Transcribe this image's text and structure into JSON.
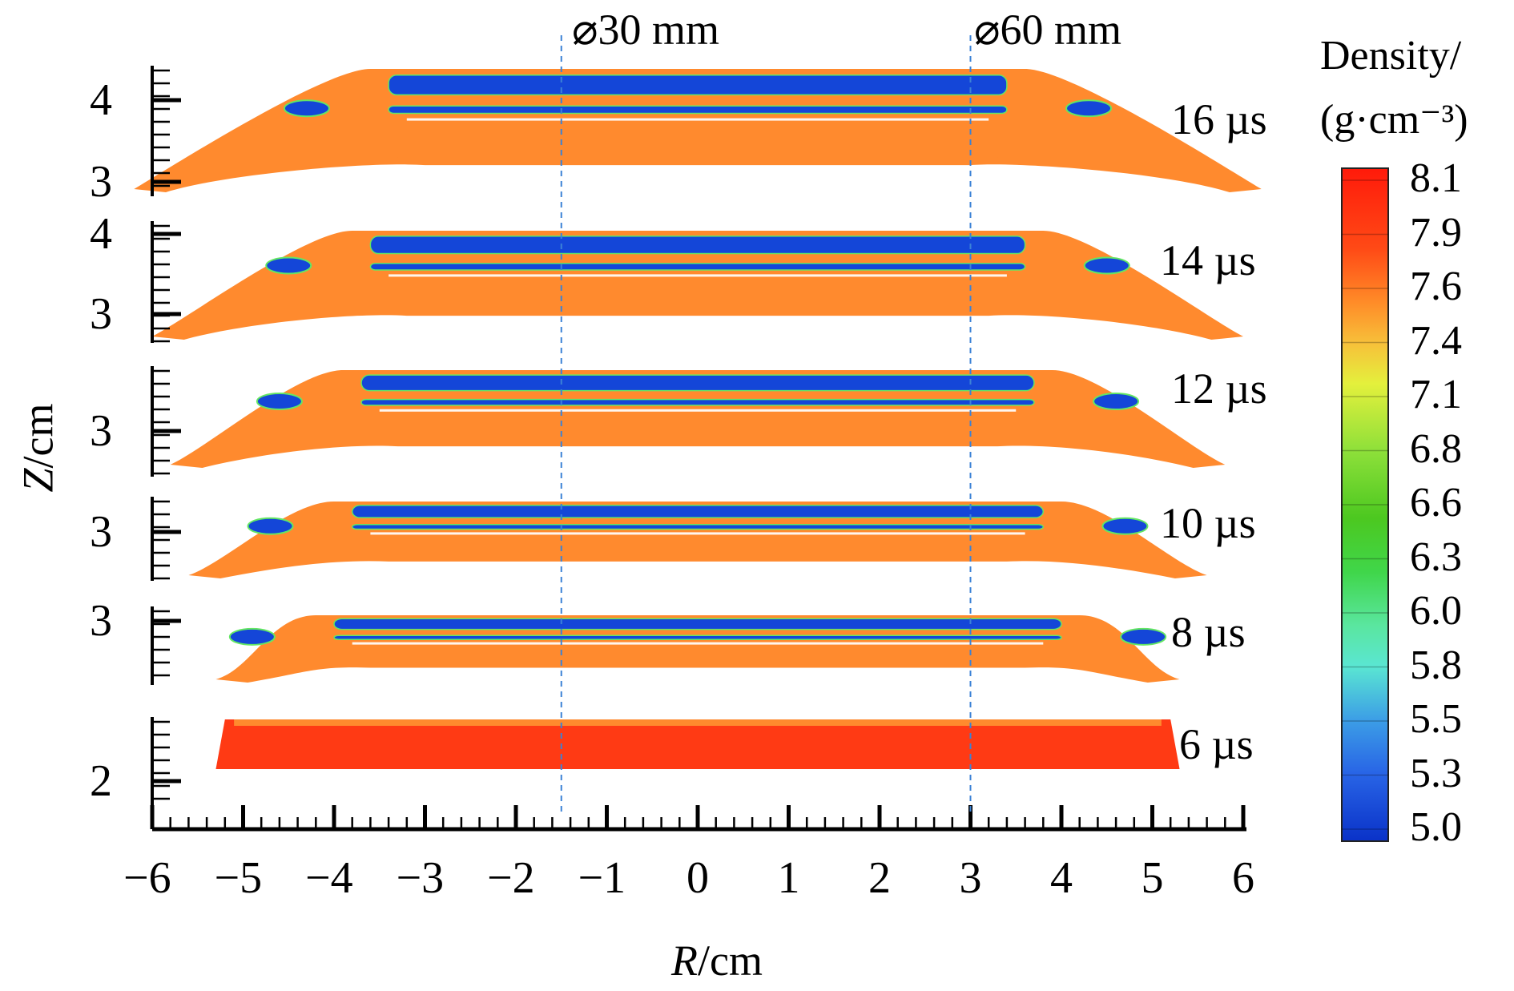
{
  "figure": {
    "diameter_labels": [
      "⌀30 mm",
      "⌀60 mm"
    ],
    "diameter_line_r": [
      -1.5,
      3
    ],
    "x_axis": {
      "label_italic": "R",
      "label_unit": "/cm",
      "range": [
        -6,
        6
      ],
      "ticks": [
        "−6",
        "−5",
        "−4",
        "−3",
        "−2",
        "−1",
        "0",
        "1",
        "2",
        "3",
        "4",
        "5",
        "6"
      ]
    },
    "y_axis": {
      "label_italic": "Z",
      "label_unit": "/cm"
    },
    "panels": [
      {
        "time": "16 µs",
        "z_ticks": [
          "4",
          "3"
        ]
      },
      {
        "time": "14 µs",
        "z_ticks": [
          "4",
          "3"
        ]
      },
      {
        "time": "12 µs",
        "z_ticks": [
          "3"
        ]
      },
      {
        "time": "10 µs",
        "z_ticks": [
          "3"
        ]
      },
      {
        "time": "8 µs",
        "z_ticks": [
          "3"
        ]
      },
      {
        "time": "6 µs",
        "z_ticks": [
          "2"
        ]
      }
    ],
    "colorbar": {
      "title_line1": "Density/",
      "title_line2": "(g·cm⁻³)",
      "levels": [
        "8.1",
        "7.9",
        "7.6",
        "7.4",
        "7.1",
        "6.8",
        "6.6",
        "6.3",
        "6.0",
        "5.8",
        "5.5",
        "5.3",
        "5.0"
      ],
      "colors": [
        "#ff1a0a",
        "#ff5a1a",
        "#ff8c28",
        "#f4c83c",
        "#e4f03c",
        "#9ee03c",
        "#54c81e",
        "#3cd23c",
        "#5ae68c",
        "#5ae6c8",
        "#3c9ee6",
        "#2864e6",
        "#0a32c8"
      ]
    },
    "material_colors": {
      "metal": "#ff8a2e",
      "dense": "#ff3a14",
      "void": "#1446d8",
      "edge": "#64e664"
    }
  }
}
